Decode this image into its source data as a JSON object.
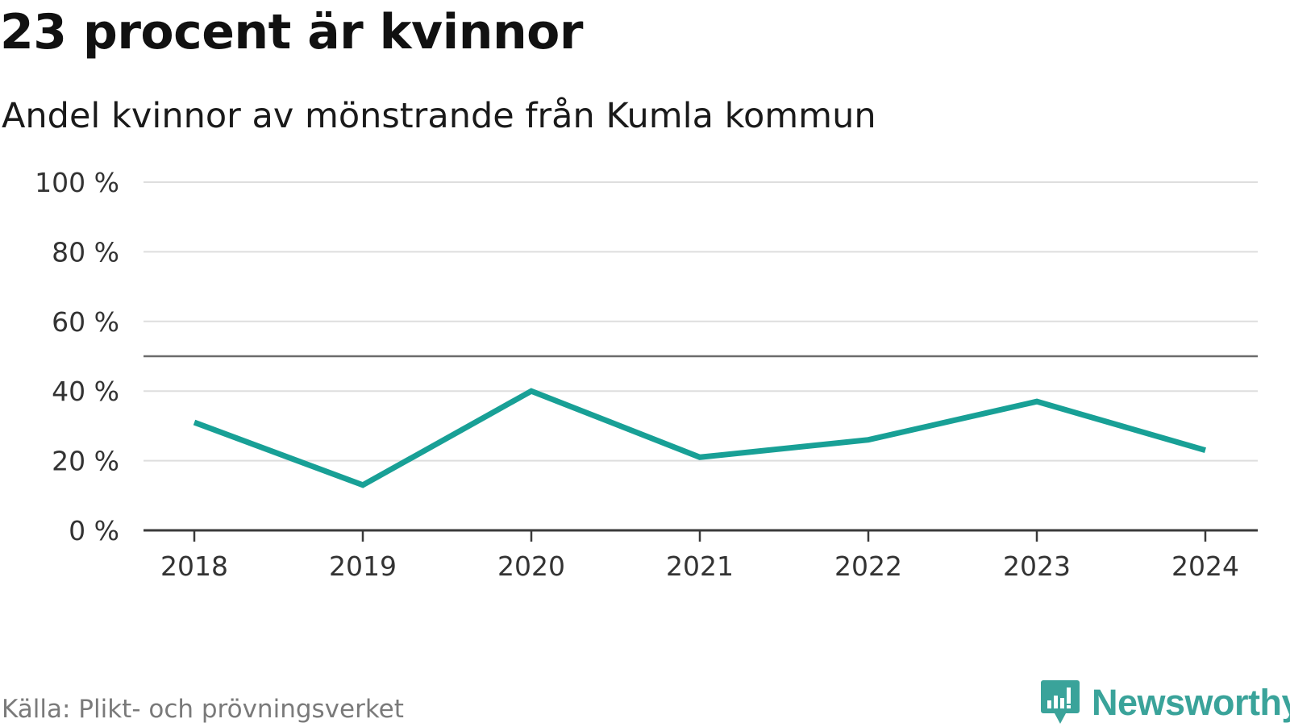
{
  "header": {
    "title": "23 procent är kvinnor",
    "subtitle": "Andel kvinnor av mönstrande från Kumla kommun"
  },
  "footer": {
    "source": "Källa: Plikt- och prövningsverket",
    "brand": "Newsworthy",
    "brand_icon": "bar-chart-speech-bubble-icon",
    "brand_color": "#3aa39a"
  },
  "chart_data": {
    "type": "line",
    "title": "23 procent är kvinnor",
    "subtitle": "Andel kvinnor av mönstrande från Kumla kommun",
    "xlabel": "",
    "ylabel": "",
    "x": [
      "2018",
      "2019",
      "2020",
      "2021",
      "2022",
      "2023",
      "2024"
    ],
    "series": [
      {
        "name": "Andel kvinnor",
        "values": [
          31,
          13,
          40,
          21,
          26,
          37,
          23
        ],
        "color": "#18a096"
      }
    ],
    "ylim": [
      0,
      100
    ],
    "yticks": [
      0,
      20,
      40,
      60,
      80,
      100
    ],
    "ytick_labels": [
      "0 %",
      "20 %",
      "40 %",
      "60 %",
      "80 %",
      "100 %"
    ],
    "reference_line": 50,
    "grid": true,
    "legend": "none",
    "source": "Källa: Plikt- och prövningsverket"
  }
}
